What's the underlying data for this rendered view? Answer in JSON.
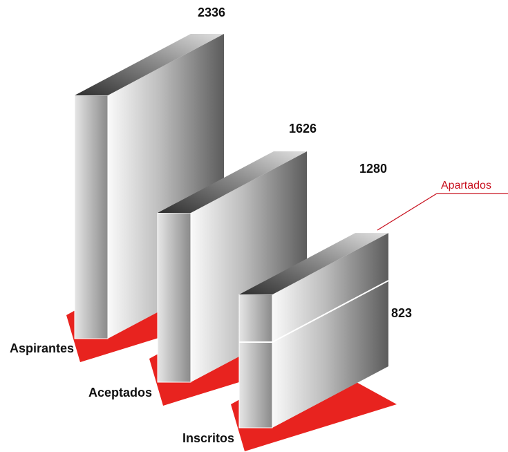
{
  "chart_data": {
    "type": "bar",
    "categories": [
      "Aspirantes",
      "Aceptados",
      "Inscritos"
    ],
    "values": [
      2336,
      1626,
      1280
    ],
    "value_labels": [
      "2336",
      "1626",
      "1280"
    ],
    "stacked_segment": {
      "category": "Inscritos",
      "lower_value": 823,
      "lower_label": "823"
    },
    "annotation": "Apartados",
    "colors": {
      "base": "#e8231f",
      "annotation": "#c8101e",
      "bar_light": "#f4f4f4",
      "bar_dark": "#5a5a5a"
    }
  }
}
